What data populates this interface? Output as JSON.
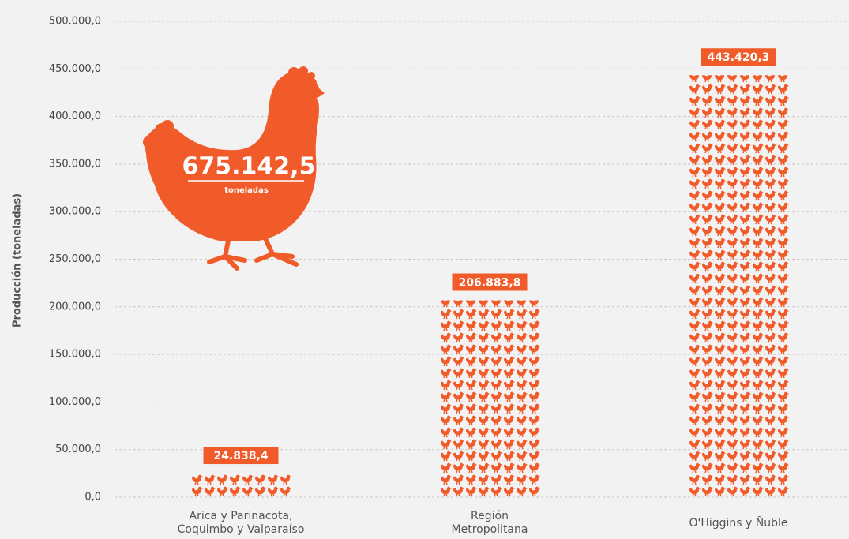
{
  "chart_data": {
    "type": "pictogram",
    "y_label": "Producción (toneladas)",
    "annotation": {
      "value": "675.142,5",
      "unit": "toneladas"
    },
    "categories": [
      "Arica y Parinacota, Coquimbo y Valparaíso",
      "Región Metropolitana",
      "O'Higgins y Ñuble"
    ],
    "values": [
      24838.4,
      206883.8,
      443420.3
    ],
    "value_labels": [
      "24.838,4",
      "206.883,8",
      "443.420,3"
    ],
    "color": "#f15a29",
    "ylim": [
      0,
      500000
    ],
    "yticks": [
      {
        "value": 0,
        "label": "0,0"
      },
      {
        "value": 50000,
        "label": "50.000,0"
      },
      {
        "value": 100000,
        "label": "100.000,0"
      },
      {
        "value": 150000,
        "label": "150.000,0"
      },
      {
        "value": 200000,
        "label": "200.000,0"
      },
      {
        "value": 250000,
        "label": "250.000,0"
      },
      {
        "value": 300000,
        "label": "300.000,0"
      },
      {
        "value": 350000,
        "label": "350.000,0"
      },
      {
        "value": 400000,
        "label": "400.000,0"
      },
      {
        "value": 450000,
        "label": "450.000,0"
      },
      {
        "value": 500000,
        "label": "500.000,0"
      }
    ],
    "grid": true
  }
}
